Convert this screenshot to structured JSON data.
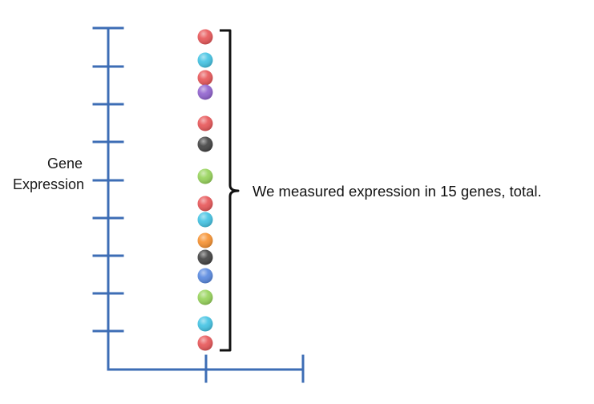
{
  "axis": {
    "y_label_lines": [
      "Gene",
      "Expression"
    ],
    "color": "#3d6db5"
  },
  "annotation": {
    "text": "We measured expression in 15 genes, total."
  },
  "genes": [
    {
      "color": "#e8585a"
    },
    {
      "color": "#45c4e4"
    },
    {
      "color": "#e8585a"
    },
    {
      "color": "#9264cf"
    },
    {
      "color": "#e8585a"
    },
    {
      "color": "#444444"
    },
    {
      "color": "#98d45c"
    },
    {
      "color": "#e8585a"
    },
    {
      "color": "#45c4e4"
    },
    {
      "color": "#f79333"
    },
    {
      "color": "#444444"
    },
    {
      "color": "#5a8ae0"
    },
    {
      "color": "#98d45c"
    },
    {
      "color": "#45c4e4"
    },
    {
      "color": "#e8585a"
    }
  ]
}
